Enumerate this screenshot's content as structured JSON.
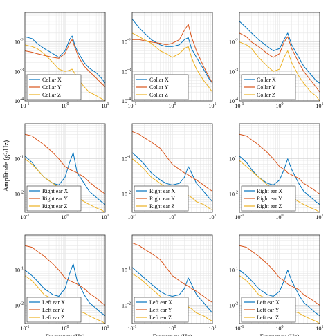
{
  "figure": {
    "ylabel": "Amplitude (g²/Hz)",
    "xlabel": "Frequency (Hz)",
    "series_colors": [
      "#0072BD",
      "#D95319",
      "#EDB120"
    ]
  },
  "chart_data": [
    {
      "type": "line",
      "scale": "log-log",
      "grid": true,
      "legend": "bottom-left",
      "xlim": [
        0.1,
        10
      ],
      "ylim": [
        0.0001,
        0.1
      ],
      "xticks": [
        {
          "v": 0.1,
          "exp": "-1"
        },
        {
          "v": 1,
          "exp": "0"
        },
        {
          "v": 10,
          "exp": "1"
        }
      ],
      "yticks": [
        {
          "v": 0.0001,
          "exp": "-4"
        },
        {
          "v": 0.001,
          "exp": "-3"
        },
        {
          "v": 0.01,
          "exp": "-2"
        }
      ],
      "x": [
        0.1,
        0.15,
        0.2,
        0.3,
        0.5,
        0.7,
        1.0,
        1.3,
        1.5,
        1.8,
        2.2,
        3,
        4,
        6,
        8,
        10
      ],
      "series": [
        {
          "name": "Collar X",
          "values": [
            0.015,
            0.013,
            0.009,
            0.006,
            0.004,
            0.003,
            0.005,
            0.012,
            0.016,
            0.007,
            0.004,
            0.002,
            0.0013,
            0.0009,
            0.0006,
            0.0004
          ]
        },
        {
          "name": "Collar Y",
          "values": [
            0.005,
            0.0045,
            0.004,
            0.0035,
            0.003,
            0.0028,
            0.004,
            0.009,
            0.012,
            0.006,
            0.003,
            0.0015,
            0.001,
            0.0006,
            0.0004,
            0.0003
          ]
        },
        {
          "name": "Collar Z",
          "values": [
            0.008,
            0.007,
            0.006,
            0.004,
            0.002,
            0.0012,
            0.001,
            0.0011,
            0.0012,
            0.0008,
            0.0005,
            0.0003,
            0.0002,
            0.00015,
            0.00012,
            0.0001
          ]
        }
      ]
    },
    {
      "type": "line",
      "scale": "log-log",
      "grid": true,
      "legend": "bottom-left",
      "xlim": [
        0.1,
        10
      ],
      "ylim": [
        0.0001,
        0.1
      ],
      "xticks": [
        {
          "v": 0.1,
          "exp": "-1"
        },
        {
          "v": 1,
          "exp": "0"
        },
        {
          "v": 10,
          "exp": "1"
        }
      ],
      "yticks": [
        {
          "v": 0.0001,
          "exp": "-4"
        },
        {
          "v": 0.001,
          "exp": "-3"
        },
        {
          "v": 0.01,
          "exp": "-2"
        }
      ],
      "x": [
        0.1,
        0.15,
        0.2,
        0.3,
        0.5,
        0.7,
        1.0,
        1.5,
        2,
        2.5,
        3,
        4,
        6,
        8,
        10
      ],
      "series": [
        {
          "name": "Collar X",
          "values": [
            0.06,
            0.03,
            0.02,
            0.012,
            0.008,
            0.007,
            0.007,
            0.008,
            0.012,
            0.014,
            0.006,
            0.003,
            0.0012,
            0.0006,
            0.0004
          ]
        },
        {
          "name": "Collar Y",
          "values": [
            0.012,
            0.012,
            0.011,
            0.01,
            0.009,
            0.008,
            0.009,
            0.012,
            0.025,
            0.04,
            0.015,
            0.005,
            0.0015,
            0.0007,
            0.0004
          ]
        },
        {
          "name": "Collar Z",
          "values": [
            0.02,
            0.015,
            0.012,
            0.009,
            0.005,
            0.004,
            0.003,
            0.004,
            0.006,
            0.007,
            0.003,
            0.0012,
            0.0005,
            0.0003,
            0.0002
          ]
        }
      ]
    },
    {
      "type": "line",
      "scale": "log-log",
      "grid": true,
      "legend": "bottom-left",
      "xlim": [
        0.1,
        10
      ],
      "ylim": [
        0.0001,
        0.1
      ],
      "xticks": [
        {
          "v": 0.1,
          "exp": "-1"
        },
        {
          "v": 1,
          "exp": "0"
        },
        {
          "v": 10,
          "exp": "1"
        }
      ],
      "yticks": [
        {
          "v": 0.0001,
          "exp": "-4"
        },
        {
          "v": 0.001,
          "exp": "-3"
        },
        {
          "v": 0.01,
          "exp": "-2"
        }
      ],
      "x": [
        0.1,
        0.15,
        0.2,
        0.3,
        0.5,
        0.7,
        1.0,
        1.3,
        1.6,
        2,
        3,
        4,
        6,
        8,
        10
      ],
      "series": [
        {
          "name": "Collar X",
          "values": [
            0.05,
            0.03,
            0.02,
            0.012,
            0.007,
            0.005,
            0.006,
            0.012,
            0.02,
            0.008,
            0.003,
            0.0015,
            0.0008,
            0.0005,
            0.0004
          ]
        },
        {
          "name": "Collar Y",
          "values": [
            0.02,
            0.015,
            0.01,
            0.007,
            0.004,
            0.003,
            0.004,
            0.01,
            0.015,
            0.006,
            0.002,
            0.001,
            0.0005,
            0.0003,
            0.0002
          ]
        },
        {
          "name": "Collar Z",
          "values": [
            0.01,
            0.008,
            0.006,
            0.003,
            0.0015,
            0.001,
            0.0012,
            0.003,
            0.005,
            0.002,
            0.0007,
            0.0004,
            0.0002,
            0.00015,
            0.0001
          ]
        }
      ]
    },
    {
      "type": "line",
      "scale": "log-log",
      "grid": true,
      "legend": "bottom-left",
      "xlim": [
        0.1,
        10
      ],
      "ylim": [
        0.003,
        1
      ],
      "xticks": [
        {
          "v": 0.1,
          "exp": "-1"
        },
        {
          "v": 1,
          "exp": "0"
        },
        {
          "v": 10,
          "exp": "1"
        }
      ],
      "yticks": [
        {
          "v": 0.01,
          "exp": "-2"
        },
        {
          "v": 0.1,
          "exp": "-1"
        }
      ],
      "x": [
        0.1,
        0.15,
        0.2,
        0.3,
        0.5,
        0.7,
        1.0,
        1.3,
        1.6,
        2,
        3,
        4,
        6,
        8,
        10
      ],
      "series": [
        {
          "name": "Right ear X",
          "values": [
            0.12,
            0.08,
            0.05,
            0.03,
            0.02,
            0.018,
            0.03,
            0.08,
            0.15,
            0.04,
            0.02,
            0.012,
            0.008,
            0.006,
            0.005
          ]
        },
        {
          "name": "Right ear Y",
          "values": [
            0.5,
            0.45,
            0.35,
            0.25,
            0.15,
            0.1,
            0.06,
            0.05,
            0.045,
            0.04,
            0.03,
            0.022,
            0.015,
            0.012,
            0.01
          ]
        },
        {
          "name": "Right ear Z",
          "values": [
            0.1,
            0.07,
            0.05,
            0.03,
            0.02,
            0.015,
            0.012,
            0.01,
            0.009,
            0.008,
            0.006,
            0.005,
            0.004,
            0.0035,
            0.003
          ]
        }
      ]
    },
    {
      "type": "line",
      "scale": "log-log",
      "grid": true,
      "legend": "bottom-left",
      "xlim": [
        0.1,
        10
      ],
      "ylim": [
        0.003,
        1
      ],
      "xticks": [
        {
          "v": 0.1,
          "exp": "-1"
        },
        {
          "v": 1,
          "exp": "0"
        },
        {
          "v": 10,
          "exp": "1"
        }
      ],
      "yticks": [
        {
          "v": 0.01,
          "exp": "-2"
        },
        {
          "v": 0.1,
          "exp": "-1"
        }
      ],
      "x": [
        0.1,
        0.15,
        0.2,
        0.3,
        0.5,
        0.7,
        1.0,
        1.5,
        2,
        2.5,
        3,
        4,
        6,
        8,
        10
      ],
      "series": [
        {
          "name": "Right ear X",
          "values": [
            0.15,
            0.1,
            0.07,
            0.04,
            0.025,
            0.02,
            0.018,
            0.02,
            0.03,
            0.06,
            0.04,
            0.02,
            0.012,
            0.008,
            0.006
          ]
        },
        {
          "name": "Right ear Y",
          "values": [
            0.6,
            0.5,
            0.4,
            0.3,
            0.2,
            0.12,
            0.07,
            0.05,
            0.04,
            0.035,
            0.03,
            0.025,
            0.018,
            0.014,
            0.012
          ]
        },
        {
          "name": "Right ear Z",
          "values": [
            0.1,
            0.07,
            0.05,
            0.03,
            0.02,
            0.015,
            0.012,
            0.01,
            0.009,
            0.009,
            0.008,
            0.006,
            0.005,
            0.004,
            0.0035
          ]
        }
      ]
    },
    {
      "type": "line",
      "scale": "log-log",
      "grid": true,
      "legend": "bottom-left",
      "xlim": [
        0.1,
        10
      ],
      "ylim": [
        0.003,
        1
      ],
      "xticks": [
        {
          "v": 0.1,
          "exp": "-1"
        },
        {
          "v": 1,
          "exp": "0"
        },
        {
          "v": 10,
          "exp": "1"
        }
      ],
      "yticks": [
        {
          "v": 0.01,
          "exp": "-2"
        },
        {
          "v": 0.1,
          "exp": "-1"
        }
      ],
      "x": [
        0.1,
        0.15,
        0.2,
        0.3,
        0.5,
        0.7,
        1.0,
        1.3,
        1.6,
        2,
        3,
        4,
        6,
        8,
        10
      ],
      "series": [
        {
          "name": "Right ear X",
          "values": [
            0.12,
            0.08,
            0.05,
            0.03,
            0.02,
            0.018,
            0.025,
            0.05,
            0.1,
            0.05,
            0.02,
            0.012,
            0.008,
            0.006,
            0.005
          ]
        },
        {
          "name": "Right ear Y",
          "values": [
            0.5,
            0.45,
            0.35,
            0.25,
            0.15,
            0.1,
            0.06,
            0.05,
            0.04,
            0.035,
            0.028,
            0.02,
            0.015,
            0.012,
            0.01
          ]
        },
        {
          "name": "Right ear Z",
          "values": [
            0.09,
            0.06,
            0.045,
            0.03,
            0.018,
            0.014,
            0.011,
            0.01,
            0.009,
            0.008,
            0.006,
            0.005,
            0.004,
            0.0035,
            0.003
          ]
        }
      ]
    },
    {
      "type": "line",
      "scale": "log-log",
      "grid": true,
      "legend": "bottom-left",
      "xlim": [
        0.1,
        10
      ],
      "ylim": [
        0.003,
        1
      ],
      "xticks": [
        {
          "v": 0.1,
          "exp": "-1"
        },
        {
          "v": 1,
          "exp": "0"
        },
        {
          "v": 10,
          "exp": "1"
        }
      ],
      "yticks": [
        {
          "v": 0.01,
          "exp": "-2"
        },
        {
          "v": 0.1,
          "exp": "-1"
        }
      ],
      "x": [
        0.1,
        0.15,
        0.2,
        0.3,
        0.5,
        0.7,
        1.0,
        1.3,
        1.6,
        2,
        3,
        4,
        6,
        8,
        10
      ],
      "series": [
        {
          "name": "Left ear X",
          "values": [
            0.1,
            0.07,
            0.05,
            0.03,
            0.02,
            0.018,
            0.03,
            0.08,
            0.15,
            0.05,
            0.02,
            0.012,
            0.008,
            0.006,
            0.005
          ]
        },
        {
          "name": "Left ear Y",
          "values": [
            0.5,
            0.45,
            0.35,
            0.25,
            0.15,
            0.1,
            0.06,
            0.05,
            0.045,
            0.04,
            0.03,
            0.022,
            0.016,
            0.012,
            0.01
          ]
        },
        {
          "name": "Left ear Z",
          "values": [
            0.07,
            0.05,
            0.035,
            0.02,
            0.015,
            0.012,
            0.01,
            0.009,
            0.008,
            0.007,
            0.006,
            0.005,
            0.004,
            0.0035,
            0.003
          ]
        }
      ]
    },
    {
      "type": "line",
      "scale": "log-log",
      "grid": true,
      "legend": "bottom-left",
      "xlim": [
        0.1,
        10
      ],
      "ylim": [
        0.003,
        1
      ],
      "xticks": [
        {
          "v": 0.1,
          "exp": "-1"
        },
        {
          "v": 1,
          "exp": "0"
        },
        {
          "v": 10,
          "exp": "1"
        }
      ],
      "yticks": [
        {
          "v": 0.01,
          "exp": "-2"
        },
        {
          "v": 0.1,
          "exp": "-1"
        }
      ],
      "x": [
        0.1,
        0.15,
        0.2,
        0.3,
        0.5,
        0.7,
        1.0,
        1.5,
        2,
        2.5,
        3,
        4,
        6,
        8,
        10
      ],
      "series": [
        {
          "name": "Left ear X",
          "values": [
            0.12,
            0.08,
            0.06,
            0.04,
            0.025,
            0.02,
            0.018,
            0.02,
            0.03,
            0.06,
            0.04,
            0.02,
            0.012,
            0.008,
            0.006
          ]
        },
        {
          "name": "Left ear Y",
          "values": [
            0.6,
            0.5,
            0.4,
            0.3,
            0.2,
            0.12,
            0.07,
            0.05,
            0.04,
            0.035,
            0.03,
            0.025,
            0.018,
            0.014,
            0.012
          ]
        },
        {
          "name": "Left ear Z",
          "values": [
            0.08,
            0.06,
            0.045,
            0.03,
            0.018,
            0.014,
            0.011,
            0.01,
            0.009,
            0.009,
            0.008,
            0.006,
            0.005,
            0.004,
            0.0035
          ]
        }
      ]
    },
    {
      "type": "line",
      "scale": "log-log",
      "grid": true,
      "legend": "bottom-left",
      "xlim": [
        0.1,
        10
      ],
      "ylim": [
        0.003,
        1
      ],
      "xticks": [
        {
          "v": 0.1,
          "exp": "-1"
        },
        {
          "v": 1,
          "exp": "0"
        },
        {
          "v": 10,
          "exp": "1"
        }
      ],
      "yticks": [
        {
          "v": 0.01,
          "exp": "-2"
        },
        {
          "v": 0.1,
          "exp": "-1"
        }
      ],
      "x": [
        0.1,
        0.15,
        0.2,
        0.3,
        0.5,
        0.7,
        1.0,
        1.3,
        1.6,
        2,
        3,
        4,
        6,
        8,
        10
      ],
      "series": [
        {
          "name": "Left ear X",
          "values": [
            0.1,
            0.07,
            0.05,
            0.03,
            0.02,
            0.018,
            0.025,
            0.05,
            0.1,
            0.05,
            0.02,
            0.012,
            0.008,
            0.006,
            0.005
          ]
        },
        {
          "name": "Left ear Y",
          "values": [
            0.5,
            0.45,
            0.35,
            0.25,
            0.15,
            0.1,
            0.06,
            0.05,
            0.04,
            0.035,
            0.028,
            0.02,
            0.015,
            0.012,
            0.01
          ]
        },
        {
          "name": "Left ear Z",
          "values": [
            0.07,
            0.05,
            0.035,
            0.02,
            0.015,
            0.012,
            0.01,
            0.009,
            0.008,
            0.007,
            0.006,
            0.005,
            0.004,
            0.0035,
            0.003
          ]
        }
      ]
    }
  ]
}
